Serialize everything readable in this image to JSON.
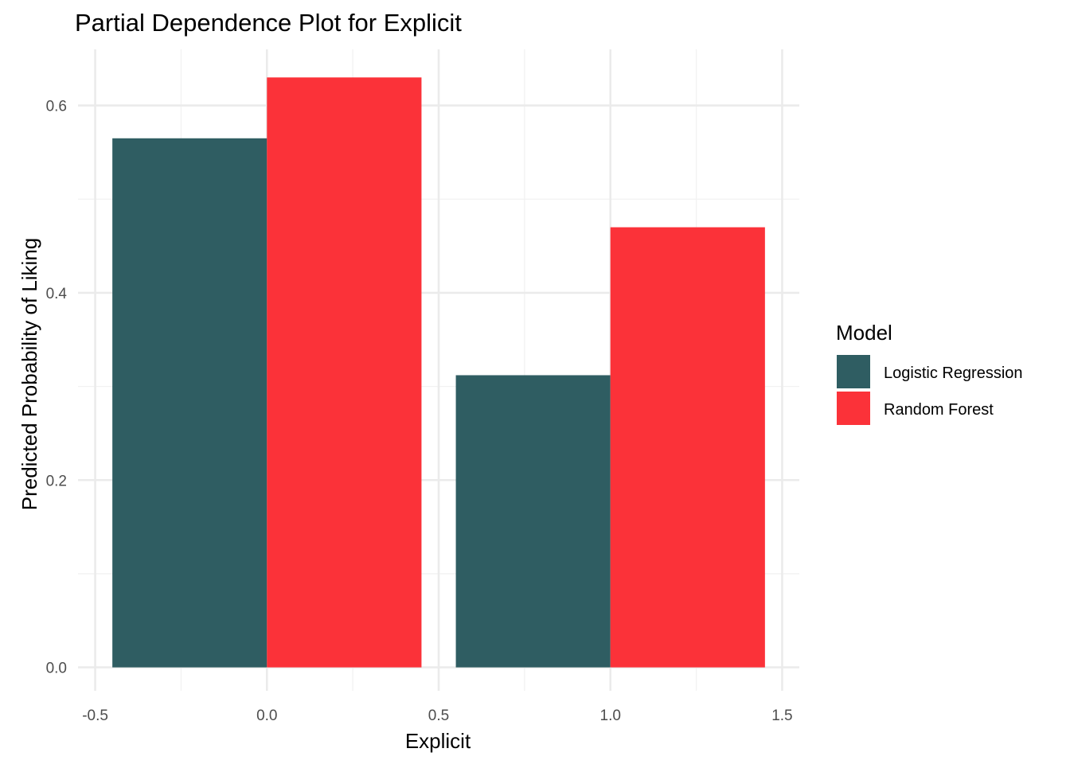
{
  "chart_data": {
    "type": "bar",
    "title": "Partial Dependence Plot for Explicit",
    "xlabel": "Explicit",
    "ylabel": "Predicted Probability of Liking",
    "categories": [
      0,
      1
    ],
    "series": [
      {
        "name": "Logistic Regression",
        "color": "#2f5d62",
        "values": [
          0.565,
          0.312
        ]
      },
      {
        "name": "Random Forest",
        "color": "#fb3239",
        "values": [
          0.63,
          0.47
        ]
      }
    ],
    "xlim": [
      -0.55,
      1.55
    ],
    "ylim": [
      -0.025,
      0.66
    ],
    "x_ticks": [
      -0.5,
      0.0,
      0.5,
      1.0,
      1.5
    ],
    "x_tick_labels": [
      "-0.5",
      "0.0",
      "0.5",
      "1.0",
      "1.5"
    ],
    "y_ticks": [
      0.0,
      0.2,
      0.4,
      0.6
    ],
    "y_tick_labels": [
      "0.0",
      "0.2",
      "0.4",
      "0.6"
    ],
    "bar_width": 0.9,
    "legend": {
      "title": "Model",
      "position": "right"
    },
    "grid": true
  }
}
